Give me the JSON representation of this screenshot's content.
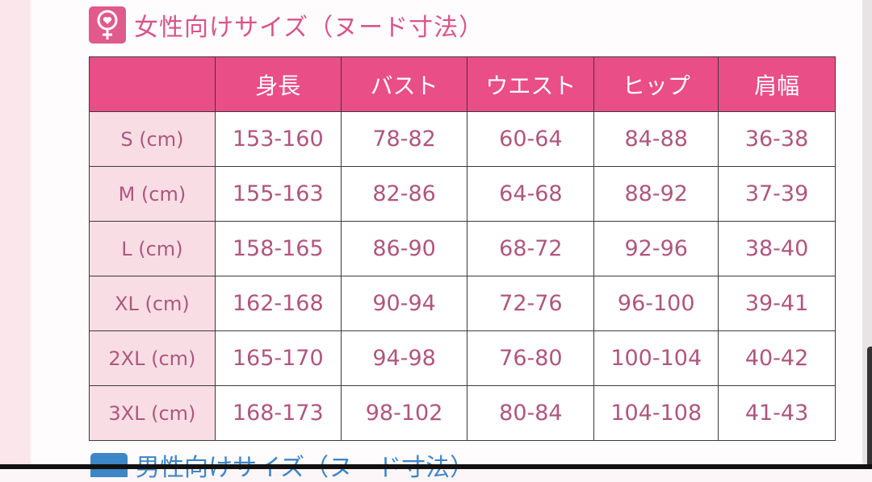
{
  "title": "女性向けサイズ（ヌード寸法）",
  "next_section_title": "男性向けサイズ（ヌード寸法）",
  "colors": {
    "header": "#e94e87",
    "label_cell": "#f8dee4",
    "value_text": "#b0567e",
    "next_icon": "#3d86c8"
  },
  "icons": {
    "title": "female-symbol-icon"
  },
  "table": {
    "headers": [
      "",
      "身長",
      "バスト",
      "ウエスト",
      "ヒップ",
      "肩幅"
    ],
    "rows": [
      [
        "S (cm)",
        "153-160",
        "78-82",
        "60-64",
        "84-88",
        "36-38"
      ],
      [
        "M (cm)",
        "155-163",
        "82-86",
        "64-68",
        "88-92",
        "37-39"
      ],
      [
        "L (cm)",
        "158-165",
        "86-90",
        "68-72",
        "92-96",
        "38-40"
      ],
      [
        "XL (cm)",
        "162-168",
        "90-94",
        "72-76",
        "96-100",
        "39-41"
      ],
      [
        "2XL (cm)",
        "165-170",
        "94-98",
        "76-80",
        "100-104",
        "40-42"
      ],
      [
        "3XL (cm)",
        "168-173",
        "98-102",
        "80-84",
        "104-108",
        "41-43"
      ]
    ]
  }
}
